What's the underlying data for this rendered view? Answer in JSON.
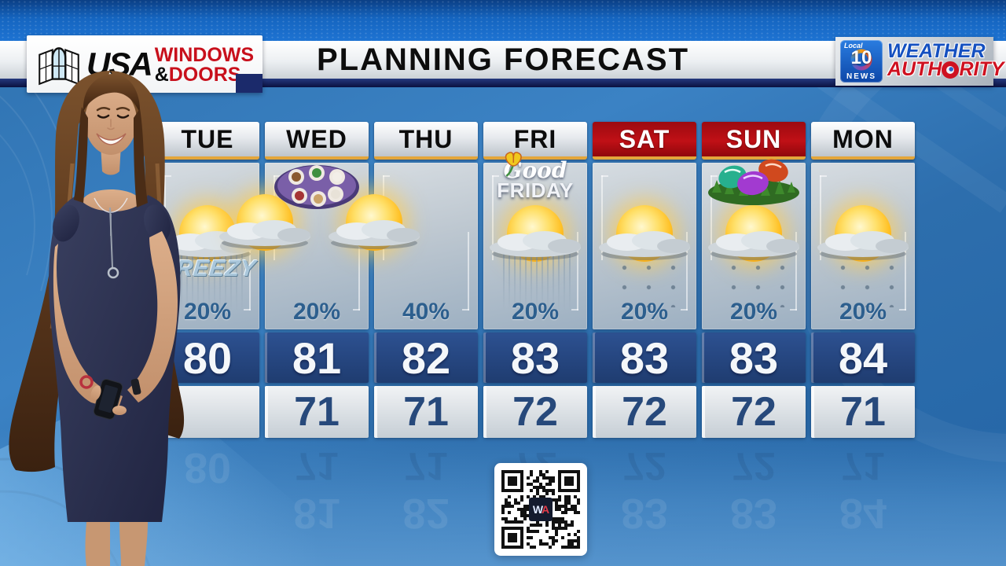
{
  "header": {
    "title": "PLANNING FORECAST",
    "sponsor": {
      "usa": "USA",
      "windows": "WINDOWS",
      "amp": "&",
      "doors": "DOORS"
    },
    "station": {
      "local": "Local",
      "ten": "10",
      "news": "NEWS",
      "weather": "WEATHER",
      "auth_pre": "AUTH",
      "auth_post": "RITY"
    }
  },
  "forecast": {
    "days": [
      {
        "label": "TUE",
        "weekend": false,
        "holiday": null,
        "condition": "rain",
        "note": "BREEZY",
        "precip": "20%",
        "high": "80",
        "low": ""
      },
      {
        "label": "WED",
        "weekend": false,
        "holiday": "seder-plate",
        "condition": "cloud",
        "note": "",
        "precip": "20%",
        "high": "81",
        "low": "71"
      },
      {
        "label": "THU",
        "weekend": false,
        "holiday": null,
        "condition": "cloud",
        "note": "",
        "precip": "40%",
        "high": "82",
        "low": "71"
      },
      {
        "label": "FRI",
        "weekend": false,
        "holiday": "good-friday",
        "condition": "rain",
        "note": "",
        "precip": "20%",
        "high": "83",
        "low": "72"
      },
      {
        "label": "SAT",
        "weekend": true,
        "holiday": null,
        "condition": "drizzle",
        "note": "",
        "precip": "20%",
        "high": "83",
        "low": "72"
      },
      {
        "label": "SUN",
        "weekend": true,
        "holiday": "easter-eggs",
        "condition": "drizzle",
        "note": "",
        "precip": "20%",
        "high": "83",
        "low": "72"
      },
      {
        "label": "MON",
        "weekend": false,
        "holiday": null,
        "condition": "drizzle",
        "note": "",
        "precip": "20%",
        "high": "84",
        "low": "71"
      }
    ],
    "good_friday": {
      "line1": "Good",
      "line2": "FRIDAY"
    }
  },
  "qr": {
    "w": "W",
    "a": "A"
  },
  "colors": {
    "weekend_header": "#c01016",
    "header_underline": "#e3a63b",
    "high_panel": "#1f3c70",
    "low_text": "#27497b",
    "precip_text": "#2d5f8e",
    "brand_blue": "#1550c0",
    "brand_red": "#cf1120"
  },
  "chart_data": {
    "type": "table",
    "title": "PLANNING FORECAST",
    "categories": [
      "TUE",
      "WED",
      "THU",
      "FRI",
      "SAT",
      "SUN",
      "MON"
    ],
    "series": [
      {
        "name": "Precipitation chance (%)",
        "values": [
          20,
          20,
          40,
          20,
          20,
          20,
          20
        ]
      },
      {
        "name": "High (F)",
        "values": [
          80,
          81,
          82,
          83,
          83,
          83,
          84
        ]
      },
      {
        "name": "Low (F)",
        "values": [
          null,
          71,
          71,
          72,
          72,
          72,
          71
        ]
      }
    ],
    "annotations": [
      "BREEZY on TUE",
      "Good FRIDAY label on FRI",
      "seder-plate icon on WED",
      "easter-eggs icon on SUN"
    ],
    "legend_position": "none",
    "grid": false
  }
}
